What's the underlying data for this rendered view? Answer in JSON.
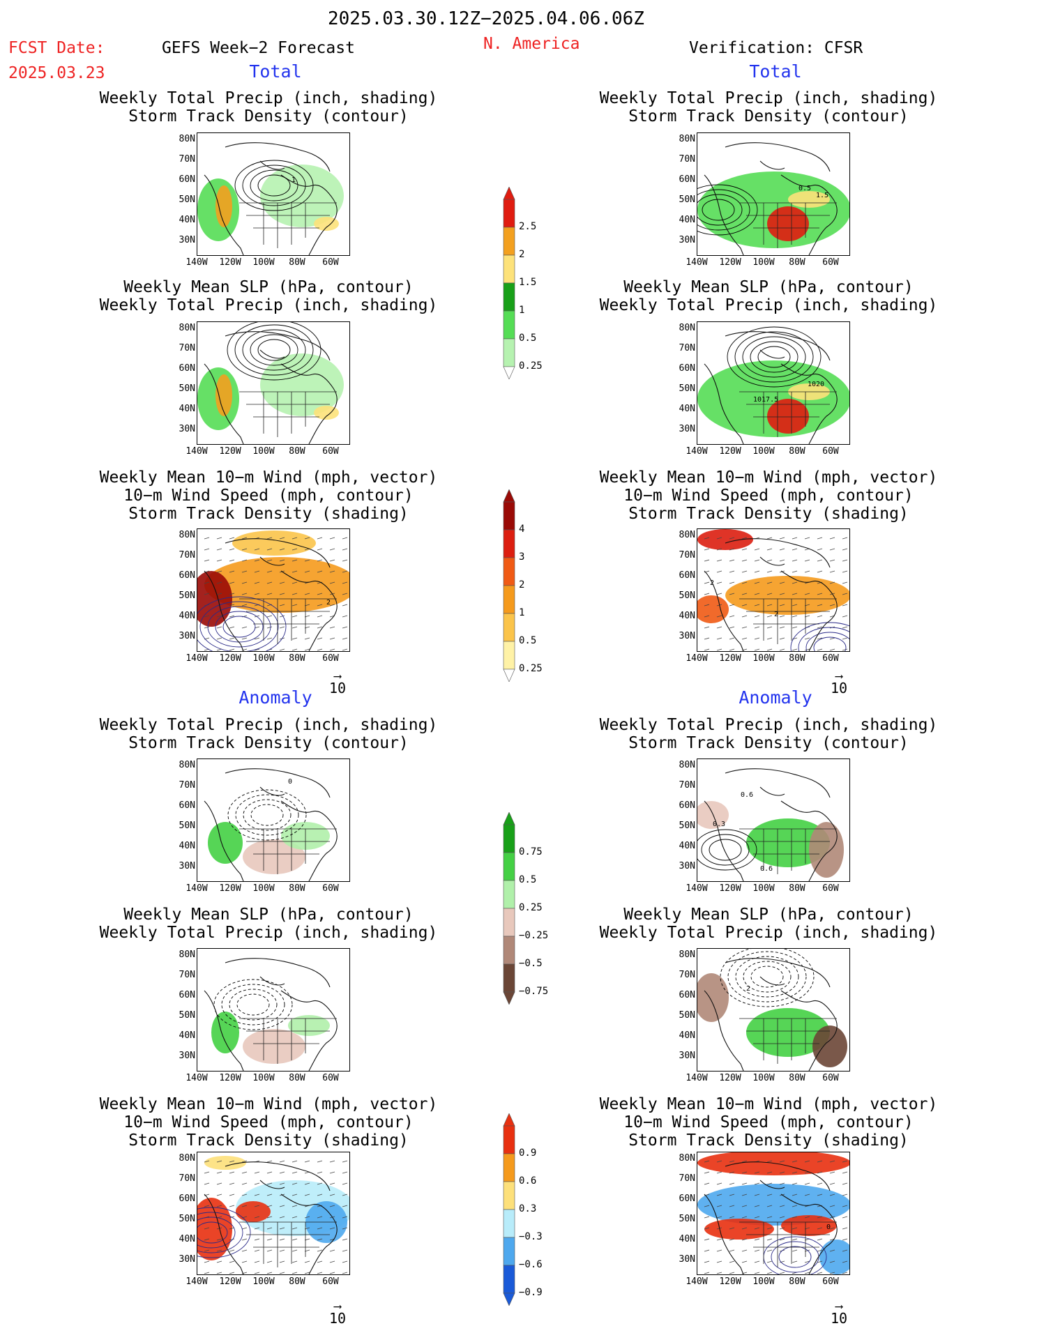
{
  "header": {
    "period": "2025.03.30.12Z−2025.04.06.06Z",
    "fcst_label": "FCST Date:",
    "fcst_date": "2025.03.23",
    "left_model": "GEFS Week−2 Forecast",
    "region": "N. America",
    "right_model": "Verification: CFSR"
  },
  "sections": {
    "total": "Total",
    "anomaly": "Anomaly"
  },
  "titles": {
    "precip_track": [
      "Weekly Total Precip (inch, shading)",
      "Storm Track Density (contour)"
    ],
    "slp_precip": [
      "Weekly Mean SLP (hPa, contour)",
      "Weekly Total Precip (inch, shading)"
    ],
    "wind_track": [
      "Weekly Mean 10−m Wind (mph, vector)",
      "10−m Wind Speed (mph, contour)",
      "Storm Track Density (shading)"
    ]
  },
  "axes": {
    "lat_labels": [
      "80N",
      "70N",
      "60N",
      "50N",
      "40N",
      "30N"
    ],
    "lon_labels": [
      "140W",
      "120W",
      "100W",
      "80W",
      "60W"
    ]
  },
  "reference_vector": "10",
  "map_annotations": {
    "p1_contour": "1",
    "p2_contour_a": "0.5",
    "p2_contour_b": "1.5",
    "p4_slp_a": "1020",
    "p4_slp_b": "1017.5",
    "p5_contour": "2",
    "p6_contour": "2",
    "p6_contour_b": "2",
    "p7_contour": "0",
    "p8_contour_a": "0.6",
    "p8_contour_b": "0.3",
    "p8_contour_c": "0.6",
    "p10_contour": "2",
    "p12_contour": "0"
  },
  "colorbars": {
    "precip": {
      "labels": [
        "2.5",
        "2",
        "1.5",
        "1",
        "0.5",
        "0.25"
      ],
      "colors": [
        "#e01c10",
        "#f3a01f",
        "#fde27a",
        "#18a018",
        "#55dd55",
        "#b6f2b0"
      ]
    },
    "track": {
      "labels": [
        "4",
        "3",
        "2",
        "1",
        "0.5",
        "0.25"
      ],
      "colors": [
        "#9a0a06",
        "#dc1e10",
        "#f05a14",
        "#f59a1c",
        "#fbc44a",
        "#fff2a6"
      ]
    },
    "precip_anom": {
      "labels": [
        "0.75",
        "0.5",
        "0.25",
        "−0.25",
        "−0.5",
        "−0.75"
      ],
      "colors": [
        "#18a018",
        "#44d044",
        "#b0f0aa",
        "#e8c8bc",
        "#b08878",
        "#6b4636"
      ]
    },
    "track_anom": {
      "labels": [
        "0.9",
        "0.6",
        "0.3",
        "−0.3",
        "−0.6",
        "−0.9"
      ],
      "colors": [
        "#e83010",
        "#f59a1c",
        "#fde07a",
        "#b8ecfa",
        "#4ea8ee",
        "#1a5ad8"
      ]
    }
  }
}
